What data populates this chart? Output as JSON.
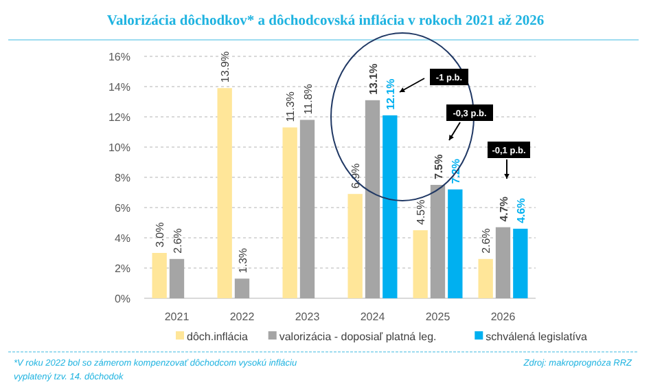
{
  "chart_data": {
    "type": "bar",
    "title": "Valorizácia dôchodkov* a dôchodcovská inflácia v rokoch 2021 až 2026",
    "categories": [
      "2021",
      "2022",
      "2023",
      "2024",
      "2025",
      "2026"
    ],
    "series": [
      {
        "name": "dôch.inflácia",
        "color": "#ffe699",
        "values": [
          3.0,
          13.9,
          11.3,
          6.9,
          4.5,
          2.6
        ],
        "value_labels": [
          "3.0%",
          "13.9%",
          "11.3%",
          "6.9%",
          "4.5%",
          "2.6%"
        ]
      },
      {
        "name": "valorizácia - doposiaľ platná leg.",
        "color": "#a5a5a5",
        "values": [
          2.6,
          1.3,
          11.8,
          13.1,
          7.5,
          4.7
        ],
        "value_labels": [
          "2.6%",
          "1.3%",
          "11.8%",
          "13.1%",
          "7.5%",
          "4.7%"
        ]
      },
      {
        "name": "schválená legislatíva",
        "color": "#00b0f0",
        "values": [
          null,
          null,
          null,
          12.1,
          7.2,
          4.6
        ],
        "value_labels": [
          null,
          null,
          null,
          "12.1%",
          "7.2%",
          "4.6%"
        ]
      }
    ],
    "ylim": [
      0,
      16
    ],
    "yticks": [
      {
        "value": 0,
        "label": "0%"
      },
      {
        "value": 2,
        "label": "2%"
      },
      {
        "value": 4,
        "label": "4%"
      },
      {
        "value": 6,
        "label": "6%"
      },
      {
        "value": 8,
        "label": "8%"
      },
      {
        "value": 10,
        "label": "10%"
      },
      {
        "value": 12,
        "label": "12%"
      },
      {
        "value": 14,
        "label": "14%"
      },
      {
        "value": 16,
        "label": "16%"
      }
    ],
    "grid": "y",
    "legend": "bottom",
    "annotations": [
      "-1 p.b.",
      "-0,3 p.b.",
      "-0,1 p.b.",
      "*V roku 2022 bol so zámerom kompenzovať dôchodcom vysokú infláciu vyplatený tzv. 14. dôchodok",
      "Zdroj: makroprognóza RRZ"
    ]
  }
}
